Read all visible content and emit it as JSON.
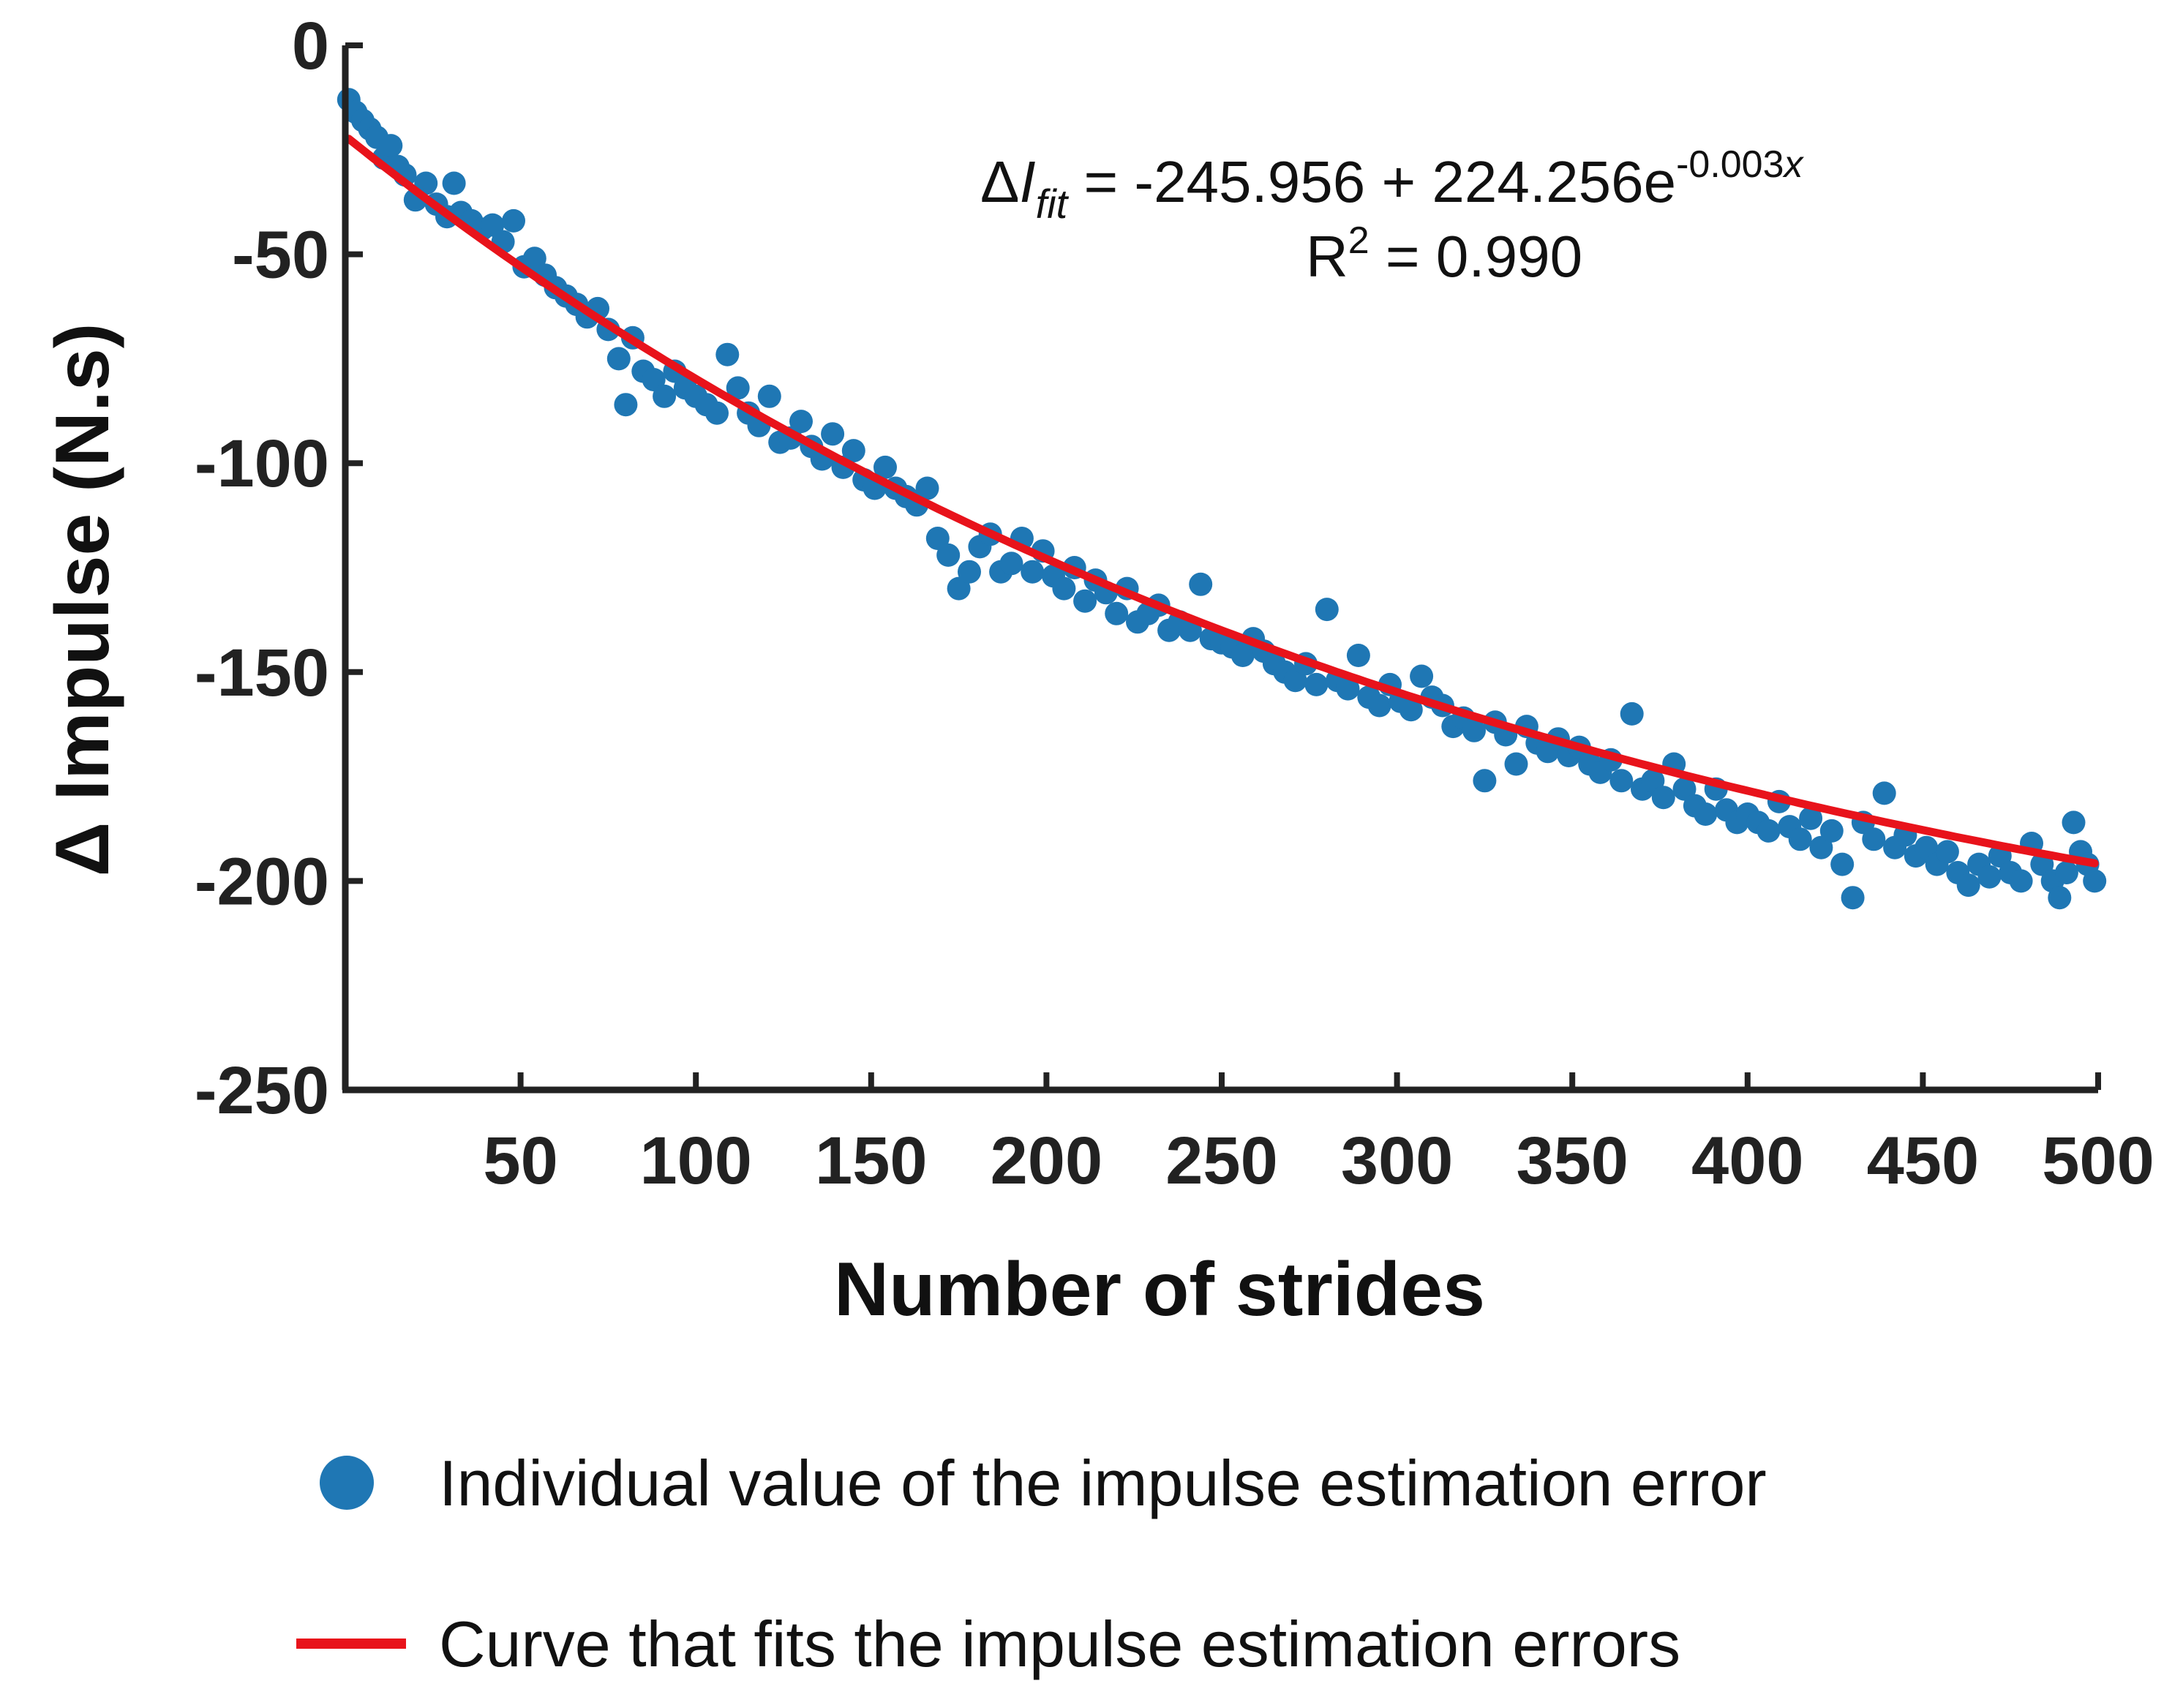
{
  "chart_data": {
    "type": "scatter",
    "title": "",
    "xlabel": "Number of strides",
    "ylabel": "Δ Impulse (N.s)",
    "xlim": [
      0,
      500
    ],
    "ylim": [
      -250,
      0
    ],
    "x_ticks": [
      50,
      100,
      150,
      200,
      250,
      300,
      350,
      400,
      450,
      500
    ],
    "y_ticks": [
      0,
      -50,
      -100,
      -150,
      -200,
      -250
    ],
    "grid": false,
    "colors": {
      "points": "#1f77b4",
      "fit": "#e8131b",
      "axis": "#222222"
    },
    "series": [
      {
        "name": "Individual value of the impulse estimation error",
        "kind": "scatter",
        "points": [
          [
            1,
            -13
          ],
          [
            3,
            -16
          ],
          [
            5,
            -18
          ],
          [
            7,
            -20
          ],
          [
            9,
            -22
          ],
          [
            11,
            -27
          ],
          [
            13,
            -24
          ],
          [
            15,
            -29
          ],
          [
            17,
            -31
          ],
          [
            20,
            -37
          ],
          [
            23,
            -33
          ],
          [
            26,
            -38
          ],
          [
            29,
            -41
          ],
          [
            31,
            -33
          ],
          [
            33,
            -40
          ],
          [
            36,
            -42
          ],
          [
            39,
            -44
          ],
          [
            42,
            -43
          ],
          [
            45,
            -47
          ],
          [
            48,
            -42
          ],
          [
            51,
            -53
          ],
          [
            54,
            -51
          ],
          [
            57,
            -55
          ],
          [
            60,
            -58
          ],
          [
            63,
            -60
          ],
          [
            66,
            -62
          ],
          [
            69,
            -65
          ],
          [
            72,
            -63
          ],
          [
            75,
            -68
          ],
          [
            78,
            -75
          ],
          [
            80,
            -86
          ],
          [
            82,
            -70
          ],
          [
            85,
            -78
          ],
          [
            88,
            -80
          ],
          [
            91,
            -84
          ],
          [
            94,
            -78
          ],
          [
            97,
            -82
          ],
          [
            100,
            -84
          ],
          [
            103,
            -86
          ],
          [
            106,
            -88
          ],
          [
            109,
            -74
          ],
          [
            112,
            -82
          ],
          [
            115,
            -88
          ],
          [
            118,
            -91
          ],
          [
            121,
            -84
          ],
          [
            124,
            -95
          ],
          [
            127,
            -94
          ],
          [
            130,
            -90
          ],
          [
            133,
            -96
          ],
          [
            136,
            -99
          ],
          [
            139,
            -93
          ],
          [
            142,
            -101
          ],
          [
            145,
            -97
          ],
          [
            148,
            -104
          ],
          [
            151,
            -106
          ],
          [
            154,
            -101
          ],
          [
            157,
            -106
          ],
          [
            160,
            -108
          ],
          [
            163,
            -110
          ],
          [
            166,
            -106
          ],
          [
            169,
            -118
          ],
          [
            172,
            -122
          ],
          [
            175,
            -130
          ],
          [
            178,
            -126
          ],
          [
            181,
            -120
          ],
          [
            184,
            -117
          ],
          [
            187,
            -126
          ],
          [
            190,
            -124
          ],
          [
            193,
            -118
          ],
          [
            196,
            -126
          ],
          [
            199,
            -121
          ],
          [
            202,
            -127
          ],
          [
            205,
            -130
          ],
          [
            208,
            -125
          ],
          [
            211,
            -133
          ],
          [
            214,
            -128
          ],
          [
            217,
            -131
          ],
          [
            220,
            -136
          ],
          [
            223,
            -130
          ],
          [
            226,
            -138
          ],
          [
            229,
            -136
          ],
          [
            232,
            -134
          ],
          [
            235,
            -140
          ],
          [
            238,
            -138
          ],
          [
            241,
            -140
          ],
          [
            244,
            -129
          ],
          [
            247,
            -142
          ],
          [
            250,
            -143
          ],
          [
            253,
            -144
          ],
          [
            256,
            -146
          ],
          [
            259,
            -142
          ],
          [
            262,
            -145
          ],
          [
            265,
            -148
          ],
          [
            268,
            -150
          ],
          [
            271,
            -152
          ],
          [
            274,
            -148
          ],
          [
            277,
            -153
          ],
          [
            280,
            -135
          ],
          [
            283,
            -152
          ],
          [
            286,
            -154
          ],
          [
            289,
            -146
          ],
          [
            292,
            -156
          ],
          [
            295,
            -158
          ],
          [
            298,
            -153
          ],
          [
            301,
            -157
          ],
          [
            304,
            -159
          ],
          [
            307,
            -151
          ],
          [
            310,
            -156
          ],
          [
            313,
            -158
          ],
          [
            316,
            -163
          ],
          [
            319,
            -161
          ],
          [
            322,
            -164
          ],
          [
            325,
            -176
          ],
          [
            328,
            -162
          ],
          [
            331,
            -165
          ],
          [
            334,
            -172
          ],
          [
            337,
            -163
          ],
          [
            340,
            -167
          ],
          [
            343,
            -169
          ],
          [
            346,
            -166
          ],
          [
            349,
            -170
          ],
          [
            352,
            -168
          ],
          [
            355,
            -172
          ],
          [
            358,
            -174
          ],
          [
            361,
            -171
          ],
          [
            364,
            -176
          ],
          [
            367,
            -160
          ],
          [
            370,
            -178
          ],
          [
            373,
            -176
          ],
          [
            376,
            -180
          ],
          [
            379,
            -172
          ],
          [
            382,
            -178
          ],
          [
            385,
            -182
          ],
          [
            388,
            -184
          ],
          [
            391,
            -178
          ],
          [
            394,
            -183
          ],
          [
            397,
            -186
          ],
          [
            400,
            -184
          ],
          [
            403,
            -186
          ],
          [
            406,
            -188
          ],
          [
            409,
            -181
          ],
          [
            412,
            -187
          ],
          [
            415,
            -190
          ],
          [
            418,
            -185
          ],
          [
            421,
            -192
          ],
          [
            424,
            -188
          ],
          [
            427,
            -196
          ],
          [
            430,
            -204
          ],
          [
            433,
            -186
          ],
          [
            436,
            -190
          ],
          [
            439,
            -179
          ],
          [
            442,
            -192
          ],
          [
            445,
            -189
          ],
          [
            448,
            -194
          ],
          [
            451,
            -192
          ],
          [
            454,
            -196
          ],
          [
            457,
            -193
          ],
          [
            460,
            -198
          ],
          [
            463,
            -201
          ],
          [
            466,
            -196
          ],
          [
            469,
            -199
          ],
          [
            472,
            -194
          ],
          [
            475,
            -198
          ],
          [
            478,
            -200
          ],
          [
            481,
            -191
          ],
          [
            484,
            -196
          ],
          [
            487,
            -200
          ],
          [
            489,
            -204
          ],
          [
            491,
            -198
          ],
          [
            493,
            -186
          ],
          [
            495,
            -193
          ],
          [
            497,
            -196
          ],
          [
            499,
            -200
          ]
        ]
      },
      {
        "name": "Curve that fits the impulse estimation errors",
        "kind": "fit-curve",
        "equation": {
          "a": -245.956,
          "b": 224.256,
          "k": -0.003,
          "x_start": 1,
          "x_end": 499,
          "step": 2
        }
      }
    ],
    "annotation": {
      "eq_prefix": "Δ",
      "eq_var": "I",
      "eq_sub": "fit",
      "eq_main": " = -245.956 + 224.256e",
      "eq_exp_num": "-0.003",
      "eq_exp_var": "x",
      "r2_label": "R",
      "r2_sup": "2",
      "r2_value": " = 0.990"
    },
    "legend": [
      {
        "label": "Individual value of the impulse estimation error",
        "marker": "dot"
      },
      {
        "label": "Curve that fits the impulse estimation errors",
        "marker": "line"
      }
    ],
    "legend_placement": "bottom-center"
  }
}
